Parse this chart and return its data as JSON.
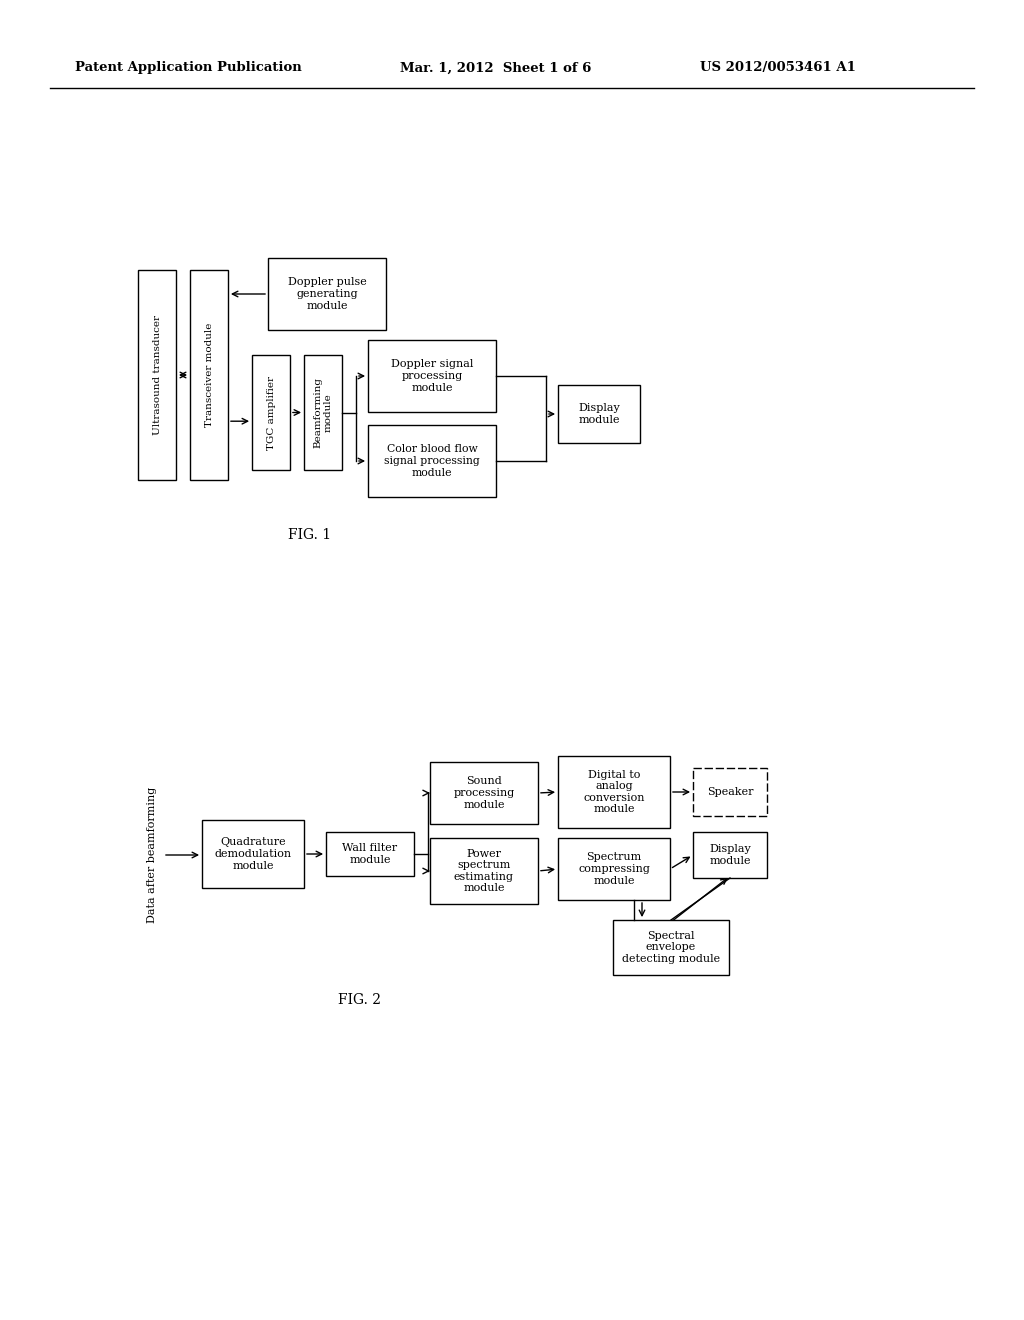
{
  "fig_width": 10.24,
  "fig_height": 13.2,
  "bg_color": "#ffffff",
  "header": {
    "left": "Patent Application Publication",
    "center": "Mar. 1, 2012  Sheet 1 of 6",
    "right": "US 2012/0053461 A1"
  },
  "fig1_label": "FIG. 1",
  "fig2_label": "FIG. 2",
  "fig2_ylabel": "Data after beamforming"
}
